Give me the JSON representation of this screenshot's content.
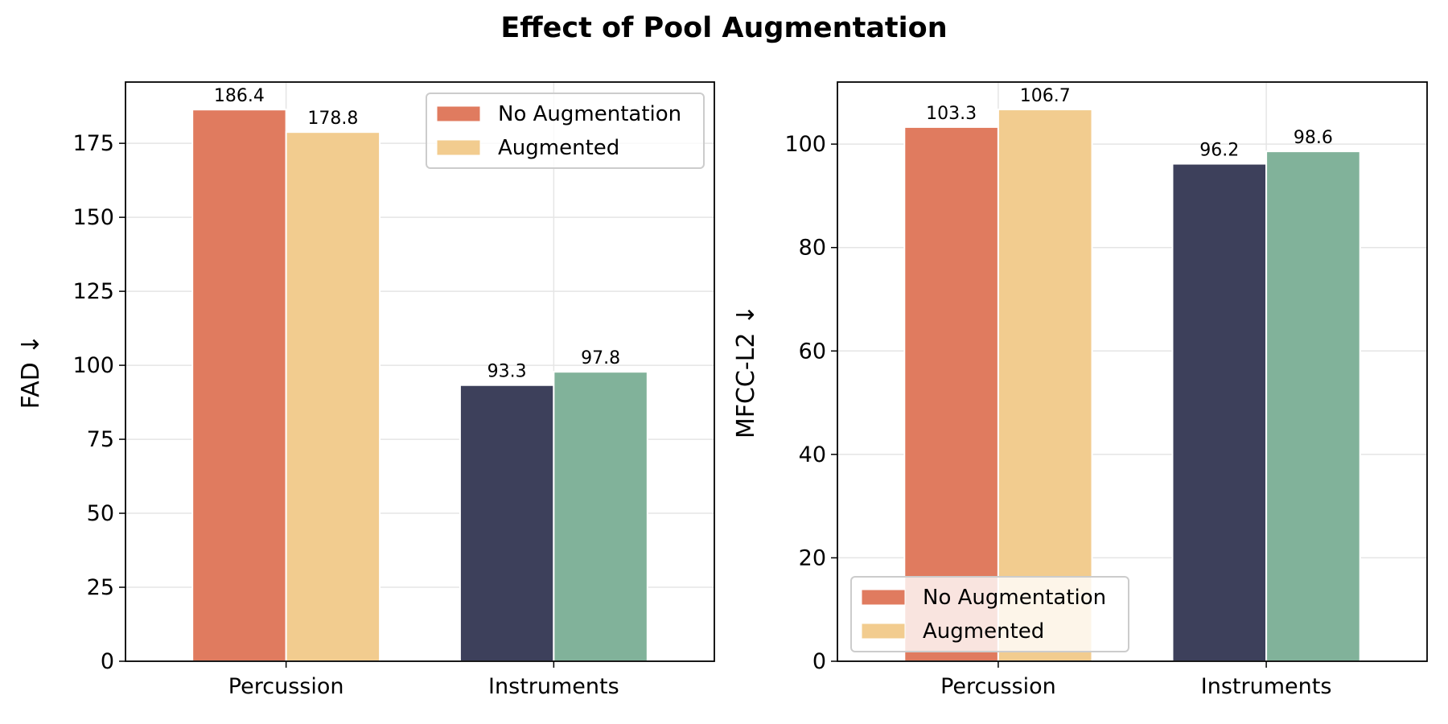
{
  "title": "Effect of Pool Augmentation",
  "chart_data": [
    {
      "type": "bar",
      "categories": [
        "Percussion",
        "Instruments"
      ],
      "series": [
        {
          "name": "No Augmentation",
          "values": [
            186.4,
            93.3
          ],
          "colors": [
            "#e07b5f",
            "#3d405b"
          ]
        },
        {
          "name": "Augmented",
          "values": [
            178.8,
            97.8
          ],
          "colors": [
            "#f2cc8f",
            "#81b29a"
          ]
        }
      ],
      "data_labels": [
        [
          "186.4",
          "93.3"
        ],
        [
          "178.8",
          "97.8"
        ]
      ],
      "ylabel": "FAD ↓",
      "ylim": [
        0,
        195.7
      ],
      "yticks": [
        0,
        25,
        50,
        75,
        100,
        125,
        150,
        175
      ],
      "ytick_labels": [
        "0",
        "25",
        "50",
        "75",
        "100",
        "125",
        "150",
        "175"
      ],
      "grid": true,
      "legend": {
        "placement": "upper-right",
        "entries": [
          "No Augmentation",
          "Augmented"
        ],
        "swatch_colors": [
          "#e07b5f",
          "#f2cc8f"
        ]
      }
    },
    {
      "type": "bar",
      "categories": [
        "Percussion",
        "Instruments"
      ],
      "series": [
        {
          "name": "No Augmentation",
          "values": [
            103.3,
            96.2
          ],
          "colors": [
            "#e07b5f",
            "#3d405b"
          ]
        },
        {
          "name": "Augmented",
          "values": [
            106.7,
            98.6
          ],
          "colors": [
            "#f2cc8f",
            "#81b29a"
          ]
        }
      ],
      "data_labels": [
        [
          "103.3",
          "96.2"
        ],
        [
          "106.7",
          "98.6"
        ]
      ],
      "ylabel": "MFCC-L2 ↓",
      "ylim": [
        0,
        112
      ],
      "yticks": [
        0,
        20,
        40,
        60,
        80,
        100
      ],
      "ytick_labels": [
        "0",
        "20",
        "40",
        "60",
        "80",
        "100"
      ],
      "grid": true,
      "legend": {
        "placement": "lower-left",
        "entries": [
          "No Augmentation",
          "Augmented"
        ],
        "swatch_colors": [
          "#e07b5f",
          "#f2cc8f"
        ]
      }
    }
  ]
}
